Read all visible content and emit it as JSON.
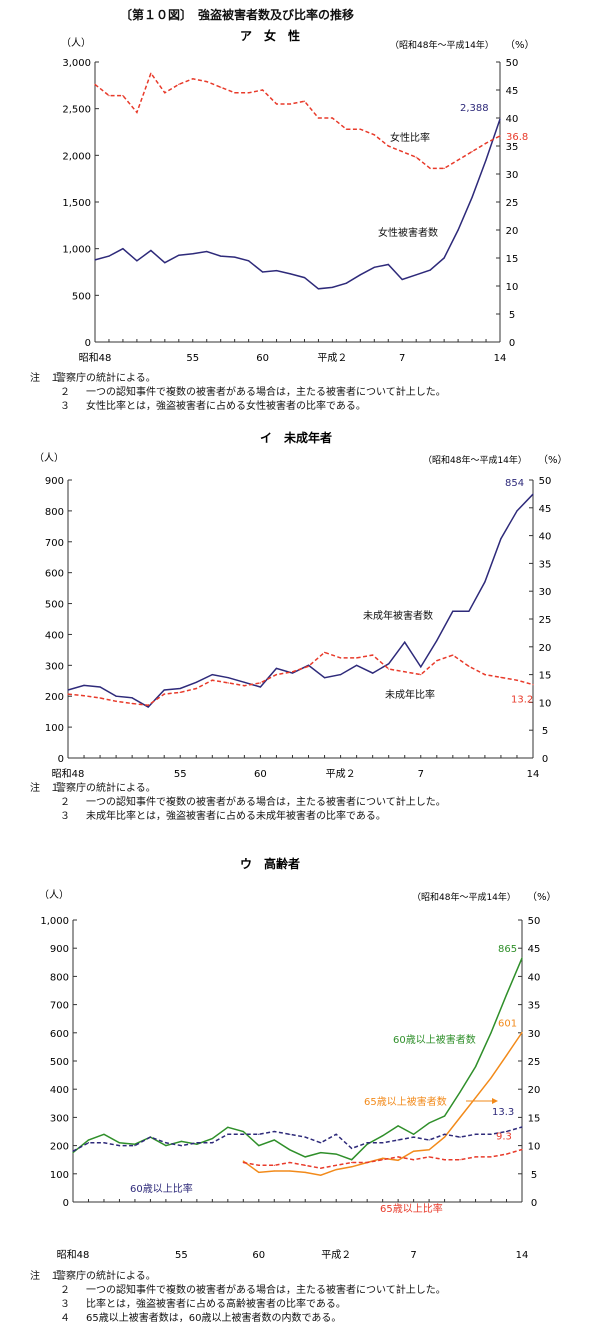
{
  "figure_title": "〔第１０図〕　強盗被害者数及び比率の推移",
  "chart_data": [
    {
      "type": "line",
      "title": "ア　女　性",
      "period": "（昭和48年～平成14年）",
      "left_unit": "（人）",
      "right_unit": "（%）",
      "ylim": [
        0,
        3000
      ],
      "y_ticks": [
        "0",
        "500",
        "1,000",
        "1,500",
        "2,000",
        "2,500",
        "3,000"
      ],
      "y2lim": [
        0,
        50
      ],
      "y2_ticks": [
        "0",
        "5",
        "10",
        "15",
        "20",
        "25",
        "30",
        "35",
        "40",
        "45",
        "50"
      ],
      "x_tick_labels": [
        {
          "x": 0,
          "label": "昭和48"
        },
        {
          "x": 7,
          "label": "55"
        },
        {
          "x": 12,
          "label": "60"
        },
        {
          "x": 17,
          "label": "平成２"
        },
        {
          "x": 22,
          "label": "7"
        },
        {
          "x": 29,
          "label": "14"
        }
      ],
      "series": [
        {
          "name": "女性被害者数",
          "axis": "left",
          "color": "#2e2a7a",
          "dashed": false,
          "values": [
            880,
            920,
            1000,
            870,
            980,
            850,
            930,
            945,
            970,
            920,
            910,
            870,
            750,
            765,
            730,
            690,
            570,
            585,
            630,
            720,
            800,
            830,
            670,
            720,
            770,
            900,
            1200,
            1550,
            1950,
            2388
          ],
          "end_label": "2,388"
        },
        {
          "name": "女性比率",
          "axis": "right",
          "color": "#e83a2a",
          "dashed": true,
          "values": [
            46,
            44,
            44,
            41,
            48,
            44.5,
            46,
            47,
            46.5,
            45.5,
            44.5,
            44.5,
            45,
            42.5,
            42.5,
            43,
            40,
            40,
            38,
            38,
            37,
            35,
            34,
            33,
            31,
            31,
            32.5,
            34,
            35.5,
            36.8
          ],
          "end_label": "36.8"
        }
      ],
      "annotations": {
        "count_label": "女性被害者数",
        "ratio_label": "女性比率"
      },
      "notes": [
        {
          "num": "注　１",
          "text": "警察庁の統計による。"
        },
        {
          "num": "２",
          "text": "一つの認知事件で複数の被害者がある場合は，主たる被害者について計上した。"
        },
        {
          "num": "３",
          "text": "女性比率とは，強盗被害者に占める女性被害者の比率である。"
        }
      ]
    },
    {
      "type": "line",
      "title": "イ　未成年者",
      "period": "（昭和48年～平成14年）",
      "left_unit": "（人）",
      "right_unit": "（%）",
      "ylim": [
        0,
        900
      ],
      "y_ticks": [
        "0",
        "100",
        "200",
        "300",
        "400",
        "500",
        "600",
        "700",
        "800",
        "900"
      ],
      "y2lim": [
        0,
        50
      ],
      "y2_ticks": [
        "0",
        "5",
        "10",
        "15",
        "20",
        "25",
        "30",
        "35",
        "40",
        "45",
        "50"
      ],
      "x_tick_labels": [
        {
          "x": 0,
          "label": "昭和48"
        },
        {
          "x": 7,
          "label": "55"
        },
        {
          "x": 12,
          "label": "60"
        },
        {
          "x": 17,
          "label": "平成２"
        },
        {
          "x": 22,
          "label": "7"
        },
        {
          "x": 29,
          "label": "14"
        }
      ],
      "series": [
        {
          "name": "未成年被害者数",
          "axis": "left",
          "color": "#2e2a7a",
          "dashed": false,
          "values": [
            220,
            235,
            230,
            200,
            195,
            165,
            220,
            225,
            245,
            270,
            260,
            245,
            230,
            290,
            275,
            300,
            260,
            270,
            300,
            275,
            305,
            375,
            295,
            380,
            475,
            475,
            570,
            710,
            800,
            854
          ],
          "end_label": "854"
        },
        {
          "name": "未成年比率",
          "axis": "right",
          "color": "#e83a2a",
          "dashed": true,
          "values": [
            11.5,
            11.2,
            10.8,
            10.2,
            9.8,
            9.5,
            11.5,
            11.8,
            12.5,
            14,
            13.5,
            13,
            13.5,
            15,
            15.5,
            16.5,
            19,
            18,
            18,
            18.5,
            16,
            15.5,
            15,
            17.5,
            18.5,
            16.5,
            15,
            14.5,
            14,
            13.2
          ],
          "end_label": "13.2"
        }
      ],
      "annotations": {
        "count_label": "未成年被害者数",
        "ratio_label": "未成年比率"
      },
      "notes": [
        {
          "num": "注　１",
          "text": "警察庁の統計による。"
        },
        {
          "num": "２",
          "text": "一つの認知事件で複数の被害者がある場合は，主たる被害者について計上した。"
        },
        {
          "num": "３",
          "text": "未成年比率とは，強盗被害者に占める未成年被害者の比率である。"
        }
      ]
    },
    {
      "type": "line",
      "title": "ウ　高齢者",
      "period": "（昭和48年～平成14年）",
      "left_unit": "（人）",
      "right_unit": "（%）",
      "ylim": [
        0,
        1000
      ],
      "y_ticks": [
        "0",
        "100",
        "200",
        "300",
        "400",
        "500",
        "600",
        "700",
        "800",
        "900",
        "1,000"
      ],
      "y2lim": [
        0,
        50
      ],
      "y2_ticks": [
        "0",
        "5",
        "10",
        "15",
        "20",
        "25",
        "30",
        "35",
        "40",
        "45",
        "50"
      ],
      "x_tick_labels": [
        {
          "x": 0,
          "label": "昭和48"
        },
        {
          "x": 7,
          "label": "55"
        },
        {
          "x": 12,
          "label": "60"
        },
        {
          "x": 17,
          "label": "平成２"
        },
        {
          "x": 22,
          "label": "7"
        },
        {
          "x": 29,
          "label": "14"
        }
      ],
      "series": [
        {
          "name": "60歳以上被害者数",
          "axis": "left",
          "color": "#2f8f2a",
          "dashed": false,
          "values": [
            175,
            220,
            240,
            210,
            205,
            230,
            200,
            215,
            205,
            225,
            265,
            250,
            200,
            220,
            185,
            160,
            175,
            170,
            150,
            205,
            235,
            270,
            240,
            280,
            305,
            390,
            480,
            600,
            735,
            865
          ],
          "end_label": "865"
        },
        {
          "name": "65歳以上被害者数",
          "axis": "left",
          "color": "#f28a1a",
          "dashed": false,
          "start_index": 11,
          "values": [
            null,
            null,
            null,
            null,
            null,
            null,
            null,
            null,
            null,
            null,
            null,
            145,
            105,
            110,
            110,
            105,
            95,
            115,
            125,
            140,
            155,
            148,
            180,
            185,
            230,
            300,
            370,
            440,
            520,
            601
          ],
          "end_label": "601"
        },
        {
          "name": "60歳以上比率",
          "axis": "right",
          "color": "#2e2a7a",
          "dashed": true,
          "values": [
            9,
            10.5,
            10.5,
            10,
            10,
            11.5,
            10.5,
            10,
            10.5,
            10.5,
            12,
            12,
            12,
            12.5,
            12,
            11.5,
            10.5,
            12,
            9.5,
            10.5,
            10.5,
            11,
            11.5,
            11,
            12,
            11.5,
            12,
            12,
            12.5,
            13.3
          ],
          "end_label": "13.3"
        },
        {
          "name": "65歳以上比率",
          "axis": "right",
          "color": "#e83a2a",
          "dashed": true,
          "start_index": 11,
          "values": [
            null,
            null,
            null,
            null,
            null,
            null,
            null,
            null,
            null,
            null,
            null,
            7,
            6.5,
            6.5,
            7,
            6.5,
            6,
            6.5,
            7,
            7,
            7.5,
            8,
            7.5,
            8,
            7.5,
            7.5,
            8,
            8,
            8.5,
            9.3
          ],
          "end_label": "9.3"
        }
      ],
      "annotations": {
        "count60_label": "60歳以上被害者数",
        "count65_label": "65歳以上被害者数",
        "ratio60_label": "60歳以上比率",
        "ratio65_label": "65歳以上比率"
      },
      "notes": [
        {
          "num": "注　１",
          "text": "警察庁の統計による。"
        },
        {
          "num": "２",
          "text": "一つの認知事件で複数の被害者がある場合は，主たる被害者について計上した。"
        },
        {
          "num": "３",
          "text": "比率とは，強盗被害者に占める高齢被害者の比率である。"
        },
        {
          "num": "４",
          "text": "65歳以上被害者数は，60歳以上被害者数の内数である。"
        }
      ]
    }
  ]
}
